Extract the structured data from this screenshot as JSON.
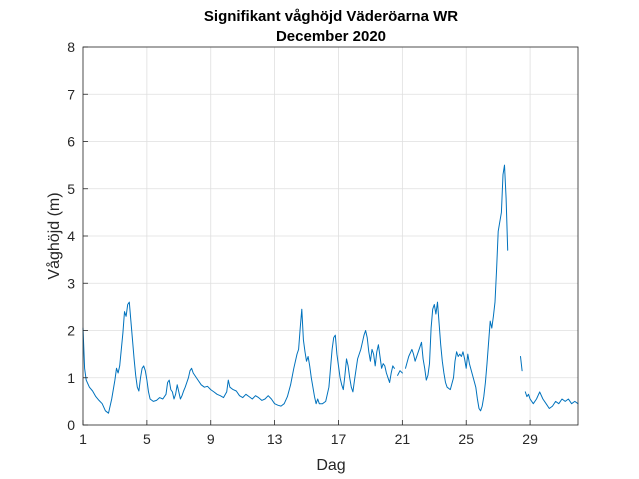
{
  "chart_data": {
    "type": "line",
    "title": "Signifikant våghöjd Väderöarna WR",
    "subtitle": "December 2020",
    "xlabel": "Dag",
    "ylabel": "Våghöjd (m)",
    "xlim": [
      1,
      32
    ],
    "ylim": [
      0,
      8
    ],
    "xticks": [
      1,
      5,
      9,
      13,
      17,
      21,
      25,
      29
    ],
    "yticks": [
      0,
      1,
      2,
      3,
      4,
      5,
      6,
      7,
      8
    ],
    "grid": true,
    "legend": "none",
    "line_color": "#0072BD",
    "series": [
      {
        "name": "Våghöjd",
        "segments": [
          [
            [
              1.0,
              2.05
            ],
            [
              1.1,
              1.2
            ],
            [
              1.2,
              0.95
            ],
            [
              1.4,
              0.8
            ],
            [
              1.6,
              0.72
            ],
            [
              1.8,
              0.6
            ],
            [
              2.0,
              0.52
            ],
            [
              2.2,
              0.45
            ],
            [
              2.4,
              0.3
            ],
            [
              2.6,
              0.25
            ],
            [
              2.8,
              0.55
            ],
            [
              3.0,
              0.95
            ],
            [
              3.1,
              1.2
            ],
            [
              3.2,
              1.1
            ],
            [
              3.3,
              1.25
            ],
            [
              3.4,
              1.6
            ],
            [
              3.5,
              1.95
            ],
            [
              3.6,
              2.4
            ],
            [
              3.7,
              2.3
            ],
            [
              3.8,
              2.55
            ],
            [
              3.9,
              2.6
            ],
            [
              4.0,
              2.2
            ],
            [
              4.1,
              1.8
            ],
            [
              4.2,
              1.4
            ],
            [
              4.3,
              1.05
            ],
            [
              4.4,
              0.8
            ],
            [
              4.5,
              0.72
            ],
            [
              4.6,
              1.0
            ],
            [
              4.7,
              1.2
            ],
            [
              4.8,
              1.25
            ],
            [
              4.9,
              1.15
            ],
            [
              5.0,
              0.95
            ],
            [
              5.1,
              0.7
            ],
            [
              5.2,
              0.55
            ],
            [
              5.4,
              0.5
            ],
            [
              5.6,
              0.52
            ],
            [
              5.8,
              0.58
            ],
            [
              6.0,
              0.55
            ],
            [
              6.2,
              0.65
            ],
            [
              6.3,
              0.9
            ],
            [
              6.4,
              0.95
            ],
            [
              6.5,
              0.75
            ],
            [
              6.6,
              0.7
            ],
            [
              6.7,
              0.55
            ],
            [
              6.8,
              0.65
            ],
            [
              6.9,
              0.85
            ],
            [
              7.0,
              0.7
            ],
            [
              7.1,
              0.55
            ],
            [
              7.2,
              0.62
            ],
            [
              7.3,
              0.72
            ],
            [
              7.4,
              0.8
            ],
            [
              7.6,
              1.0
            ],
            [
              7.7,
              1.15
            ],
            [
              7.8,
              1.2
            ],
            [
              7.9,
              1.1
            ],
            [
              8.0,
              1.05
            ],
            [
              8.2,
              0.95
            ],
            [
              8.4,
              0.85
            ],
            [
              8.6,
              0.8
            ],
            [
              8.8,
              0.82
            ],
            [
              9.0,
              0.75
            ],
            [
              9.2,
              0.7
            ],
            [
              9.4,
              0.65
            ],
            [
              9.6,
              0.62
            ],
            [
              9.8,
              0.58
            ],
            [
              10.0,
              0.7
            ],
            [
              10.1,
              0.95
            ],
            [
              10.2,
              0.8
            ],
            [
              10.4,
              0.75
            ],
            [
              10.6,
              0.72
            ],
            [
              10.8,
              0.62
            ],
            [
              11.0,
              0.58
            ],
            [
              11.2,
              0.65
            ],
            [
              11.4,
              0.6
            ],
            [
              11.6,
              0.55
            ],
            [
              11.8,
              0.62
            ],
            [
              12.0,
              0.58
            ],
            [
              12.2,
              0.52
            ],
            [
              12.4,
              0.55
            ],
            [
              12.6,
              0.62
            ],
            [
              12.8,
              0.55
            ],
            [
              13.0,
              0.45
            ],
            [
              13.2,
              0.42
            ],
            [
              13.4,
              0.4
            ],
            [
              13.6,
              0.45
            ],
            [
              13.8,
              0.6
            ],
            [
              14.0,
              0.85
            ],
            [
              14.2,
              1.2
            ],
            [
              14.4,
              1.5
            ],
            [
              14.5,
              1.6
            ],
            [
              14.6,
              2.05
            ],
            [
              14.7,
              2.45
            ],
            [
              14.8,
              1.8
            ],
            [
              14.9,
              1.55
            ],
            [
              15.0,
              1.35
            ],
            [
              15.1,
              1.45
            ],
            [
              15.2,
              1.25
            ],
            [
              15.3,
              1.0
            ],
            [
              15.4,
              0.8
            ],
            [
              15.5,
              0.6
            ],
            [
              15.6,
              0.45
            ],
            [
              15.7,
              0.55
            ],
            [
              15.8,
              0.45
            ],
            [
              16.0,
              0.45
            ],
            [
              16.2,
              0.5
            ],
            [
              16.4,
              0.8
            ],
            [
              16.5,
              1.2
            ],
            [
              16.6,
              1.6
            ],
            [
              16.7,
              1.85
            ],
            [
              16.8,
              1.9
            ],
            [
              16.9,
              1.5
            ],
            [
              17.0,
              1.25
            ],
            [
              17.1,
              1.0
            ],
            [
              17.2,
              0.85
            ],
            [
              17.3,
              0.75
            ],
            [
              17.4,
              1.05
            ],
            [
              17.5,
              1.4
            ],
            [
              17.6,
              1.25
            ],
            [
              17.7,
              1.0
            ],
            [
              17.8,
              0.8
            ],
            [
              17.9,
              0.7
            ],
            [
              18.0,
              0.95
            ],
            [
              18.2,
              1.4
            ],
            [
              18.4,
              1.6
            ],
            [
              18.5,
              1.75
            ],
            [
              18.6,
              1.9
            ],
            [
              18.7,
              2.0
            ],
            [
              18.8,
              1.85
            ],
            [
              18.9,
              1.55
            ],
            [
              19.0,
              1.35
            ],
            [
              19.1,
              1.6
            ],
            [
              19.2,
              1.5
            ],
            [
              19.3,
              1.25
            ],
            [
              19.4,
              1.55
            ],
            [
              19.5,
              1.7
            ],
            [
              19.6,
              1.45
            ],
            [
              19.7,
              1.2
            ],
            [
              19.8,
              1.3
            ],
            [
              19.9,
              1.25
            ],
            [
              20.0,
              1.1
            ],
            [
              20.1,
              1.0
            ],
            [
              20.2,
              0.9
            ],
            [
              20.3,
              1.1
            ],
            [
              20.4,
              1.25
            ],
            [
              20.5,
              1.2
            ]
          ],
          [
            [
              20.7,
              1.05
            ],
            [
              20.85,
              1.15
            ],
            [
              21.0,
              1.1
            ]
          ],
          [
            [
              21.2,
              1.2
            ],
            [
              21.4,
              1.45
            ],
            [
              21.6,
              1.6
            ],
            [
              21.7,
              1.5
            ],
            [
              21.8,
              1.35
            ],
            [
              22.0,
              1.55
            ],
            [
              22.2,
              1.75
            ],
            [
              22.3,
              1.4
            ],
            [
              22.4,
              1.2
            ],
            [
              22.5,
              0.95
            ],
            [
              22.6,
              1.05
            ],
            [
              22.7,
              1.3
            ],
            [
              22.8,
              2.05
            ],
            [
              22.9,
              2.45
            ],
            [
              23.0,
              2.55
            ],
            [
              23.1,
              2.35
            ],
            [
              23.2,
              2.6
            ],
            [
              23.3,
              2.15
            ],
            [
              23.4,
              1.7
            ],
            [
              23.5,
              1.35
            ],
            [
              23.6,
              1.1
            ],
            [
              23.7,
              0.9
            ],
            [
              23.8,
              0.8
            ],
            [
              24.0,
              0.75
            ],
            [
              24.2,
              1.0
            ],
            [
              24.3,
              1.35
            ],
            [
              24.4,
              1.55
            ],
            [
              24.5,
              1.45
            ],
            [
              24.6,
              1.5
            ],
            [
              24.7,
              1.45
            ],
            [
              24.8,
              1.55
            ],
            [
              24.9,
              1.4
            ],
            [
              25.0,
              1.2
            ],
            [
              25.1,
              1.5
            ],
            [
              25.2,
              1.3
            ],
            [
              25.4,
              1.05
            ],
            [
              25.6,
              0.8
            ],
            [
              25.7,
              0.55
            ],
            [
              25.8,
              0.35
            ],
            [
              25.9,
              0.3
            ],
            [
              26.0,
              0.4
            ],
            [
              26.1,
              0.6
            ],
            [
              26.2,
              0.9
            ],
            [
              26.3,
              1.3
            ],
            [
              26.4,
              1.75
            ],
            [
              26.5,
              2.2
            ],
            [
              26.6,
              2.05
            ],
            [
              26.7,
              2.3
            ],
            [
              26.8,
              2.6
            ],
            [
              26.9,
              3.3
            ],
            [
              27.0,
              4.1
            ],
            [
              27.1,
              4.3
            ],
            [
              27.2,
              4.5
            ],
            [
              27.3,
              5.3
            ],
            [
              27.4,
              5.5
            ],
            [
              27.5,
              4.8
            ],
            [
              27.6,
              3.7
            ]
          ],
          [
            [
              28.4,
              1.45
            ],
            [
              28.5,
              1.15
            ]
          ],
          [
            [
              28.7,
              0.7
            ],
            [
              28.8,
              0.6
            ],
            [
              28.9,
              0.65
            ],
            [
              29.0,
              0.55
            ],
            [
              29.2,
              0.45
            ],
            [
              29.4,
              0.55
            ],
            [
              29.6,
              0.7
            ],
            [
              29.8,
              0.55
            ],
            [
              30.0,
              0.45
            ],
            [
              30.2,
              0.35
            ],
            [
              30.4,
              0.4
            ],
            [
              30.6,
              0.5
            ],
            [
              30.8,
              0.45
            ],
            [
              31.0,
              0.55
            ],
            [
              31.2,
              0.5
            ],
            [
              31.4,
              0.55
            ],
            [
              31.6,
              0.45
            ],
            [
              31.8,
              0.5
            ],
            [
              32.0,
              0.45
            ]
          ]
        ]
      }
    ]
  }
}
